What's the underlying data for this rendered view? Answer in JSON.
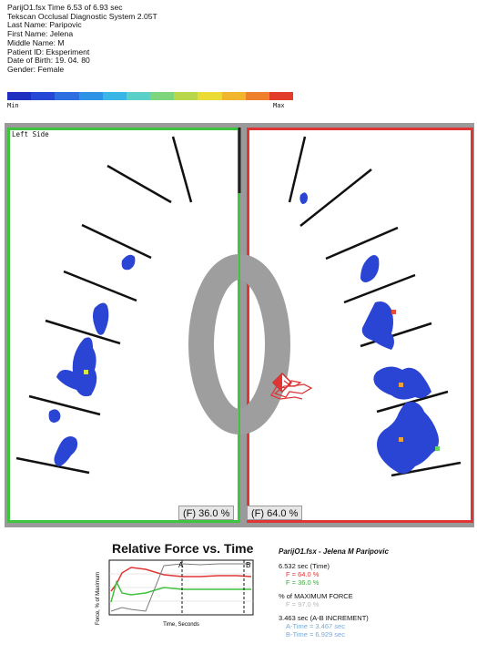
{
  "header": {
    "lines": [
      "ParijO1.fsx Time 6.53 of 6.93 sec",
      "Tekscan Occlusal Diagnostic System 2.05T",
      "Last Name: Paripovic",
      "First Name: Jelena",
      "Middle Name: M",
      "Patient ID: Eksperiment",
      "Date of Birth: 19. 04. 80",
      "Gender: Female"
    ]
  },
  "scale": {
    "min_label": "Min",
    "max_label": "Max",
    "colors": [
      "#1f2fbf",
      "#2748d6",
      "#2f6ee0",
      "#2f93e6",
      "#39b5e6",
      "#5bd0c8",
      "#7ed57c",
      "#b9d74a",
      "#eadc34",
      "#f0b62d",
      "#ee7f2b",
      "#e23c2b"
    ]
  },
  "arch": {
    "left_label": "Left Side",
    "left_percent": "(F) 36.0 %",
    "right_percent": "(F) 64.0 %",
    "left_color": "#3fc43f",
    "right_color": "#e03535",
    "contact_color": "#2a44d4"
  },
  "graph": {
    "title": "Relative Force vs. Time",
    "ylabel": "Force, % of Maximum",
    "xlabel": "Time, Seconds",
    "marker_a": "A",
    "marker_b": "B"
  },
  "info": {
    "title": "ParijO1.fsx - Jelena M Paripovic",
    "time": "6.532 sec (Time)",
    "f_red": "F = 64.0 %",
    "f_green": "F = 36.0 %",
    "max_force_label": "% of MAXIMUM FORCE",
    "max_force_value": "F = 97.0 %",
    "increment": "3.463 sec (A-B INCREMENT)",
    "a_time": "A-Time = 3.467 sec",
    "b_time": "B-Time = 6.929 sec"
  }
}
